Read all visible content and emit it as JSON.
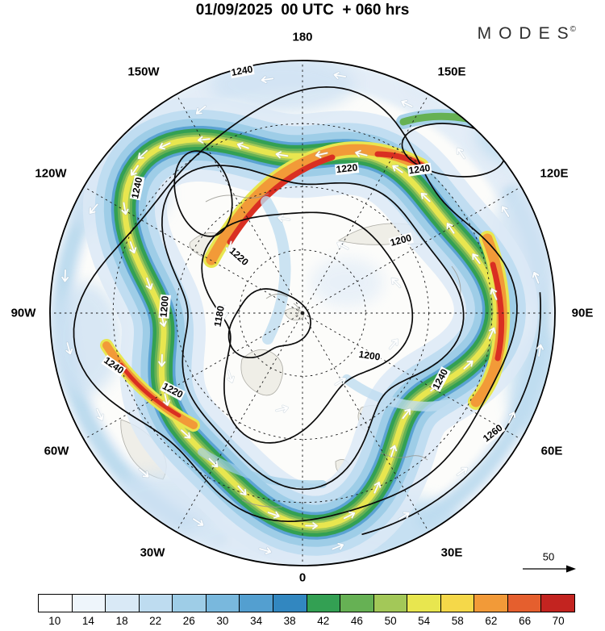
{
  "header": {
    "title": "01/09/2025  00 UTC  + 060 hrs",
    "logo": "MODES",
    "logo_sup": "©"
  },
  "map": {
    "longitude_labels": [
      "180",
      "150W",
      "150E",
      "120W",
      "120E",
      "90W",
      "90E",
      "60W",
      "60E",
      "30W",
      "30E",
      "0"
    ],
    "contour_labels": [
      "1240",
      "1220",
      "1220",
      "1200",
      "1240",
      "1200",
      "1180",
      "1200",
      "1240",
      "1220",
      "1240",
      "1260",
      "1240"
    ],
    "wind_ref": {
      "value": "50"
    }
  },
  "colorbar": {
    "ticks": [
      "10",
      "14",
      "18",
      "22",
      "26",
      "30",
      "34",
      "38",
      "42",
      "46",
      "50",
      "54",
      "58",
      "62",
      "66",
      "70"
    ],
    "colors": [
      "#ffffff",
      "#eef5fb",
      "#d9e9f6",
      "#bedcf0",
      "#9ecde7",
      "#79b8dd",
      "#539fd0",
      "#3287c0",
      "#33a053",
      "#66b154",
      "#a3c858",
      "#e8e64f",
      "#f5d849",
      "#f29a38",
      "#e55f2e",
      "#c32420"
    ]
  },
  "chart_data": {
    "type": "heatmap",
    "title": "01/09/2025 00 UTC + 060 hrs",
    "projection": "Northern Hemisphere polar stereographic, 180 at top, 0 at bottom",
    "shading_levels": [
      10,
      14,
      18,
      22,
      26,
      30,
      34,
      38,
      42,
      46,
      50,
      54,
      58,
      62,
      66,
      70
    ],
    "shading_colors": [
      "#ffffff",
      "#eef5fb",
      "#d9e9f6",
      "#bedcf0",
      "#9ecde7",
      "#79b8dd",
      "#539fd0",
      "#3287c0",
      "#33a053",
      "#66b154",
      "#a3c858",
      "#e8e64f",
      "#f5d849",
      "#f29a38",
      "#e55f2e",
      "#c32420"
    ],
    "contour_levels_labeled": [
      1180,
      1200,
      1220,
      1240,
      1260
    ],
    "wind_reference_arrow": 50,
    "longitude_labels": [
      "180",
      "150W",
      "150E",
      "120W",
      "120E",
      "90W",
      "90E",
      "60W",
      "60E",
      "30W",
      "30E",
      "0"
    ]
  }
}
